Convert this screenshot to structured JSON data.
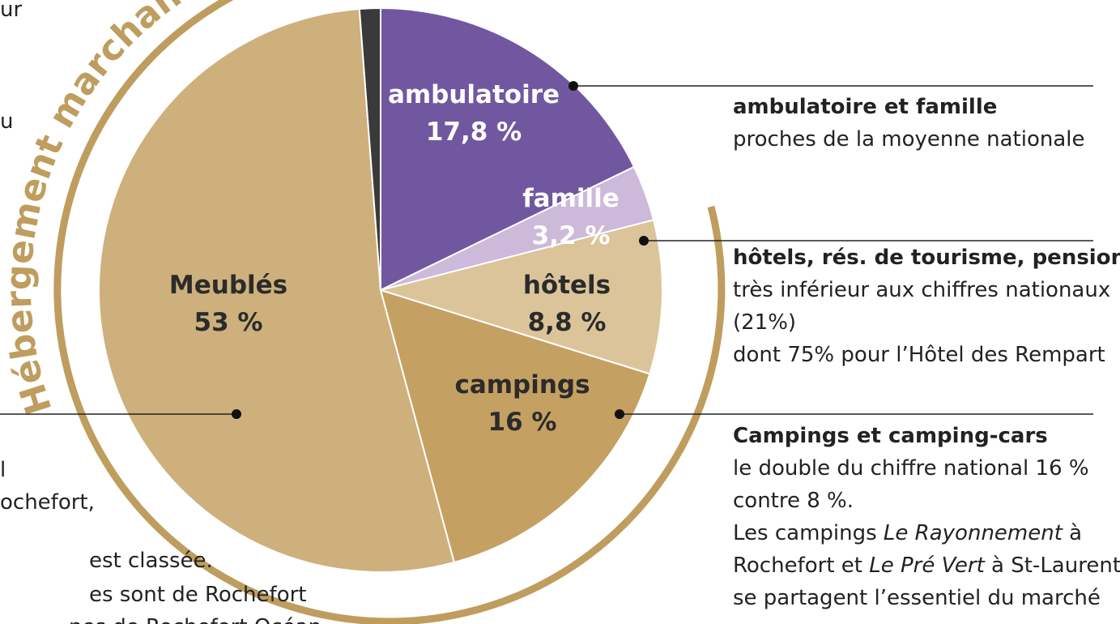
{
  "chart_data": {
    "type": "pie",
    "ring_title": "Hébergement marchand",
    "categories": [
      "ambulatoire",
      "famille",
      "hôtels",
      "campings",
      "Meublés",
      null
    ],
    "values": [
      17.8,
      3.2,
      8.8,
      16,
      53,
      1.2
    ],
    "value_labels": [
      "17,8 %",
      "3,2 %",
      "8,8 %",
      "16 %",
      "53 %",
      null
    ],
    "colors": [
      "#7157a0",
      "#cdb9d9",
      "#dcc49a",
      "#c4a062",
      "#cdb07b",
      "#3a3a3a"
    ],
    "annotations": [
      {
        "title": "ambulatoire et famille",
        "lines": [
          [
            "proches de la moyenne nationale"
          ]
        ]
      },
      {
        "title": "hôtels, rés. de tourisme, pensions",
        "lines": [
          [
            "très inférieur aux chiffres nationaux"
          ],
          [
            "(21%)"
          ],
          [
            "dont 75% pour l’Hôtel des Rempart"
          ]
        ]
      },
      {
        "title": "Campings et camping-cars",
        "lines": [
          [
            "le double du chiffre national 16 %"
          ],
          [
            "contre 8 %."
          ],
          [
            "Les campings ",
            {
              "text": "Le Rayonnement",
              "italic": true
            },
            " à"
          ],
          [
            "Rochefort et ",
            {
              "text": "Le Pré Vert",
              "italic": true
            },
            " à St-Laurent"
          ],
          [
            "se partagent l’essentiel du marché"
          ]
        ]
      }
    ],
    "side_fragments": [
      "ur",
      "u",
      "l",
      "ochefort,",
      "est classée.",
      "es sont de Rochefort",
      "nes de Rochefort Océan"
    ]
  }
}
